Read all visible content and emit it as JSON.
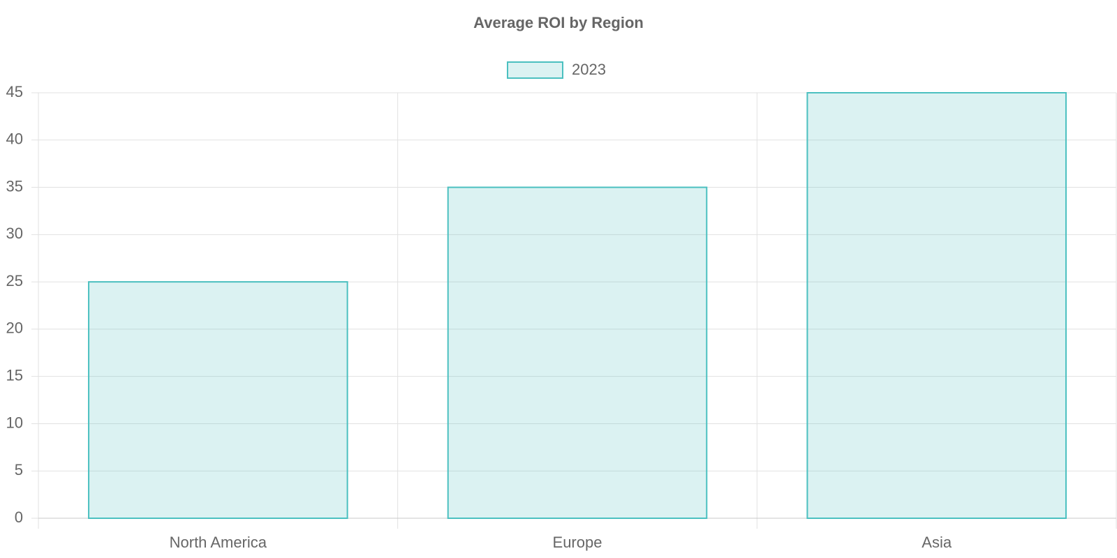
{
  "chart_data": {
    "type": "bar",
    "title": "Average ROI by Region",
    "categories": [
      "North America",
      "Europe",
      "Asia"
    ],
    "series": [
      {
        "name": "2023",
        "color": "#4bc0c0",
        "values": [
          25,
          35,
          45
        ]
      }
    ],
    "ylim": [
      0,
      45
    ],
    "yticks": [
      0,
      5,
      10,
      15,
      20,
      25,
      30,
      35,
      40,
      45
    ],
    "grid": true,
    "legend": "top"
  }
}
